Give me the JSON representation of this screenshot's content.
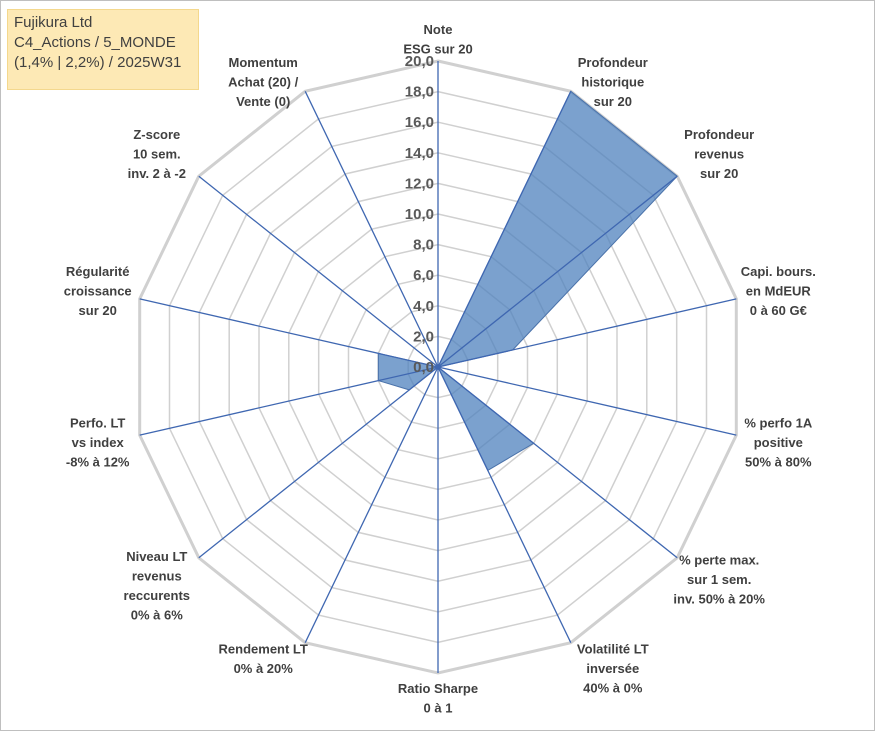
{
  "title_lines": [
    "Fujikura Ltd",
    "C4_Actions / 5_MONDE",
    "(1,4% | 2,2%) / 2025W31"
  ],
  "colors": {
    "fill": "#4f81bd",
    "fill_opacity": 0.75,
    "grid": "#d0d0d0",
    "spoke": "#3f67b1",
    "title_bg": "#fde9b5"
  },
  "chart_data": {
    "type": "radar",
    "title": "Fujikura Ltd",
    "rmin": 0,
    "rmax": 20,
    "tick_step": 2,
    "tick_labels": [
      "0,0",
      "2,0",
      "4,0",
      "6,0",
      "8,0",
      "10,0",
      "12,0",
      "14,0",
      "16,0",
      "18,0",
      "20,0"
    ],
    "grid": true,
    "axes": [
      [
        "Note",
        "ESG sur 20"
      ],
      [
        "Profondeur",
        "historique",
        "sur 20"
      ],
      [
        "Profondeur",
        "revenus",
        "sur 20"
      ],
      [
        "Capi. bours.",
        "en MdEUR",
        "0 à 60 G€"
      ],
      [
        "% perfo 1A",
        "positive",
        "50% à 80%"
      ],
      [
        "% perte max.",
        "sur 1 sem.",
        "inv. 50% à 20%"
      ],
      [
        "Volatilité LT",
        "inversée",
        "40% à 0%"
      ],
      [
        "Ratio Sharpe",
        "0 à 1"
      ],
      [
        "Rendement LT",
        "0% à 20%"
      ],
      [
        "Niveau LT",
        "revenus",
        "reccurents",
        "0% à 6%"
      ],
      [
        "Perfo. LT",
        "vs index",
        "-8% à 12%"
      ],
      [
        "Régularité",
        "croissance",
        "sur 20"
      ],
      [
        "Z-score",
        "10 sem.",
        "inv. 2 à -2"
      ],
      [
        "Momentum",
        "Achat (20) /",
        "Vente (0)"
      ]
    ],
    "values": [
      0,
      20,
      20,
      5,
      0,
      8,
      7.5,
      0,
      0,
      2.4,
      4,
      4,
      0,
      0
    ]
  }
}
